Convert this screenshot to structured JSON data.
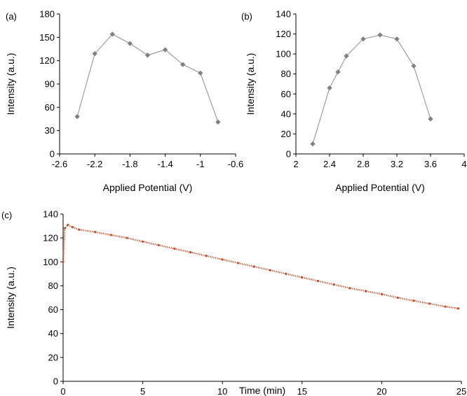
{
  "colors": {
    "marker_gray": "#808080",
    "line_gray": "#8c8c8c",
    "series_orange": "#c0502a",
    "axis": "#000000"
  },
  "chart_data": [
    {
      "panel": "(a)",
      "type": "line",
      "xlabel": "Applied Potential (V)",
      "ylabel": "Intensity (a.u.)",
      "xlim": [
        -2.6,
        -0.6
      ],
      "ylim": [
        0,
        180
      ],
      "xticks": [
        -2.6,
        -2.2,
        -1.8,
        -1.4,
        -1,
        -0.6
      ],
      "xtick_labels": [
        "-2.6",
        "-2.2",
        "-1.8",
        "-1.4",
        "-1",
        "-0.6"
      ],
      "yticks": [
        0,
        30,
        60,
        90,
        120,
        150,
        180
      ],
      "ytick_labels": [
        "0",
        "30",
        "60",
        "90",
        "120",
        "150",
        "180"
      ],
      "marker": "diamond",
      "grid": false,
      "legend": false,
      "x": [
        -2.4,
        -2.2,
        -2.0,
        -1.8,
        -1.6,
        -1.4,
        -1.2,
        -1.0,
        -0.8
      ],
      "y": [
        48,
        129,
        154,
        142,
        127,
        134,
        115,
        104,
        41
      ]
    },
    {
      "panel": "(b)",
      "type": "line",
      "xlabel": "Applied Potential (V)",
      "ylabel": "Intensity (a.u.)",
      "xlim": [
        2,
        4
      ],
      "ylim": [
        0,
        140
      ],
      "xticks": [
        2,
        2.4,
        2.8,
        3.2,
        3.6,
        4
      ],
      "xtick_labels": [
        "2",
        "2.4",
        "2.8",
        "3.2",
        "3.6",
        "4"
      ],
      "yticks": [
        0,
        20,
        40,
        60,
        80,
        100,
        120,
        140
      ],
      "ytick_labels": [
        "0",
        "20",
        "40",
        "60",
        "80",
        "100",
        "120",
        "140"
      ],
      "marker": "diamond",
      "grid": false,
      "legend": false,
      "x": [
        2.2,
        2.4,
        2.5,
        2.6,
        2.8,
        3.0,
        3.2,
        3.4,
        3.6
      ],
      "y": [
        10,
        66,
        82,
        98,
        115,
        119,
        115,
        88,
        35
      ]
    },
    {
      "panel": "(c)",
      "type": "line",
      "xlabel": "Time (min)",
      "ylabel": "Intensity (a.u.)",
      "xlim": [
        0,
        25
      ],
      "ylim": [
        0,
        140
      ],
      "xticks": [
        0,
        5,
        10,
        15,
        20,
        25
      ],
      "xtick_labels": [
        "0",
        "5",
        "10",
        "15",
        "20",
        "25"
      ],
      "yticks": [
        0,
        20,
        40,
        60,
        80,
        100,
        120,
        140
      ],
      "ytick_labels": [
        "0",
        "20",
        "40",
        "60",
        "80",
        "100",
        "120",
        "140"
      ],
      "marker": "dense-dots",
      "grid": false,
      "legend": false,
      "x": [
        0,
        0.1,
        0.3,
        0.6,
        1,
        2,
        3,
        4,
        5,
        6,
        7,
        8,
        9,
        10,
        11,
        12,
        13,
        14,
        15,
        16,
        17,
        18,
        19,
        20,
        21,
        22,
        23,
        24,
        24.8
      ],
      "y": [
        100,
        128,
        131,
        129,
        127,
        125,
        122.5,
        120,
        117,
        114,
        111,
        108,
        105,
        102,
        99,
        96,
        93,
        90,
        87,
        84,
        81,
        78,
        75.5,
        73,
        70,
        67.5,
        65,
        62.5,
        61
      ]
    }
  ]
}
